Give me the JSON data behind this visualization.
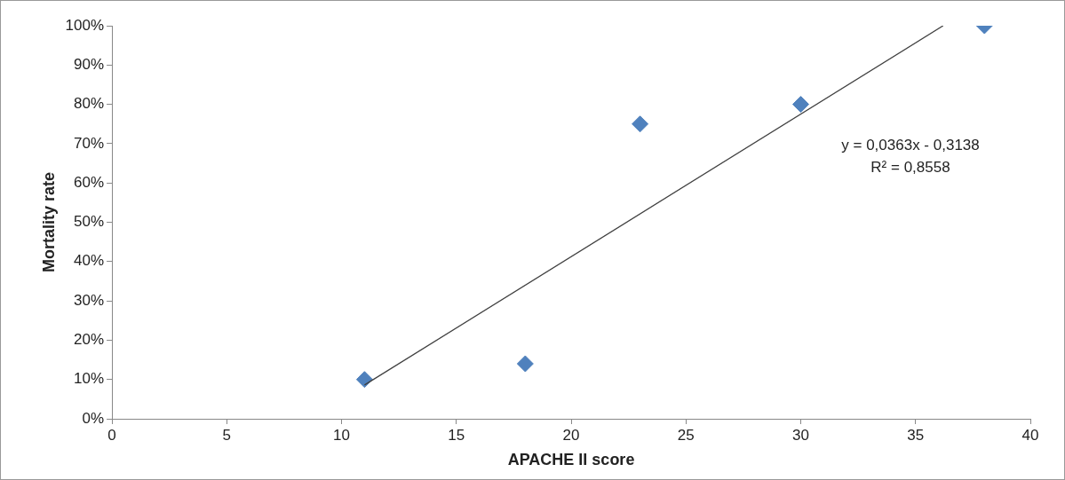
{
  "chart_data": {
    "type": "scatter",
    "xlabel": "APACHE II score",
    "ylabel": "Mortality rate",
    "xlim": [
      0,
      40
    ],
    "xticks": [
      0,
      5,
      10,
      15,
      20,
      25,
      30,
      35,
      40
    ],
    "ylim": [
      0,
      100
    ],
    "yticks": [
      {
        "value": 0,
        "label": "0%"
      },
      {
        "value": 10,
        "label": "10%"
      },
      {
        "value": 20,
        "label": "20%"
      },
      {
        "value": 30,
        "label": "30%"
      },
      {
        "value": 40,
        "label": "40%"
      },
      {
        "value": 50,
        "label": "50%"
      },
      {
        "value": 60,
        "label": "60%"
      },
      {
        "value": 70,
        "label": "70%"
      },
      {
        "value": 80,
        "label": "80%"
      },
      {
        "value": 90,
        "label": "90%"
      },
      {
        "value": 100,
        "label": "100%"
      }
    ],
    "grid": false,
    "legend": false,
    "marker": "diamond",
    "series": [
      {
        "color": "#4f81bd",
        "x": [
          11,
          18,
          23,
          30,
          38
        ],
        "values": [
          10,
          14,
          75,
          80,
          100
        ]
      },
      {
        "type": "line",
        "color": "#404040",
        "marker": "none",
        "x": [
          11,
          36.2
        ],
        "values": [
          8.6,
          100
        ]
      }
    ],
    "annotations": [
      "y = 0,0363x - 0,3138",
      "R² = 0,8558"
    ]
  }
}
